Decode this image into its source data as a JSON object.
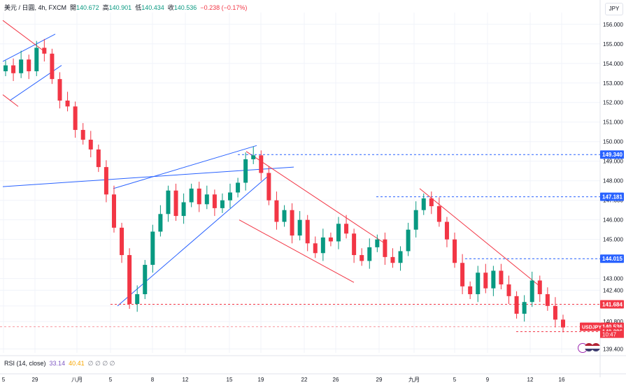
{
  "header": {
    "symbol": "美元 / 日圓, 4h, FXCM",
    "open_label": "開",
    "open": "140.672",
    "high_label": "高",
    "high": "140.901",
    "low_label": "低",
    "low": "140.434",
    "close_label": "收",
    "close": "140.536",
    "change": "−0.238 (−0.17%)"
  },
  "currency": "JPY",
  "rsi": {
    "label": "RSI (14, close)",
    "v1": "33.14",
    "v2": "40.41",
    "rest": "∅ ∅ ∅ ∅"
  },
  "chart_data": {
    "type": "candlestick",
    "symbol": "USDJPY",
    "timeframe": "4h",
    "ylim": [
      139.2,
      156.6
    ],
    "y_ticks": [
      "156.000",
      "155.000",
      "154.000",
      "153.000",
      "152.000",
      "151.000",
      "150.000",
      "149.000",
      "148.000",
      "147.000",
      "146.000",
      "145.000",
      "144.000",
      "143.000",
      "142.400",
      "141.600",
      "140.800",
      "139.400"
    ],
    "x_ticks": [
      "5",
      "29",
      "八月",
      "5",
      "8",
      "12",
      "15",
      "19",
      "22",
      "26",
      "29",
      "九月",
      "5",
      "9",
      "12",
      "16"
    ],
    "price_labels": [
      {
        "value": 149.34,
        "text": "149.340",
        "color": "#2962ff"
      },
      {
        "value": 147.181,
        "text": "147.181",
        "color": "#2962ff"
      },
      {
        "value": 144.015,
        "text": "144.015",
        "color": "#2962ff"
      },
      {
        "value": 141.684,
        "text": "141.684",
        "color": "#f23645"
      },
      {
        "value": 140.536,
        "text": "140.536",
        "color": "#f23645"
      },
      {
        "value": 140.286,
        "text": "140.286",
        "color": "#f23645"
      }
    ],
    "last_price": {
      "symbol": "USDJPY",
      "price": "140.536",
      "countdown": "10:47"
    },
    "series_closes": [
      153.9,
      153.5,
      154.2,
      153.6,
      154.8,
      154.5,
      153.2,
      152.1,
      151.8,
      150.6,
      150.1,
      149.6,
      148.7,
      147.3,
      145.6,
      144.2,
      141.7,
      142.2,
      143.7,
      145.4,
      146.3,
      147.5,
      146.2,
      146.9,
      147.6,
      146.8,
      147.3,
      146.6,
      147.0,
      147.4,
      147.9,
      149.1,
      149.3,
      148.4,
      147.0,
      145.9,
      146.5,
      145.2,
      146.0,
      144.8,
      144.3,
      145.1,
      144.9,
      145.8,
      145.3,
      144.2,
      143.9,
      144.6,
      145.0,
      144.1,
      143.8,
      144.4,
      145.5,
      146.5,
      147.1,
      146.7,
      145.9,
      145.0,
      143.8,
      142.6,
      142.2,
      143.3,
      142.5,
      143.4,
      142.7,
      142.1,
      141.2,
      141.8,
      142.9,
      142.2,
      141.6,
      140.9,
      140.5
    ],
    "colors": {
      "up": "#089981",
      "down": "#f23645",
      "trend_blue": "#2962ff",
      "trend_red": "#f23645"
    }
  }
}
